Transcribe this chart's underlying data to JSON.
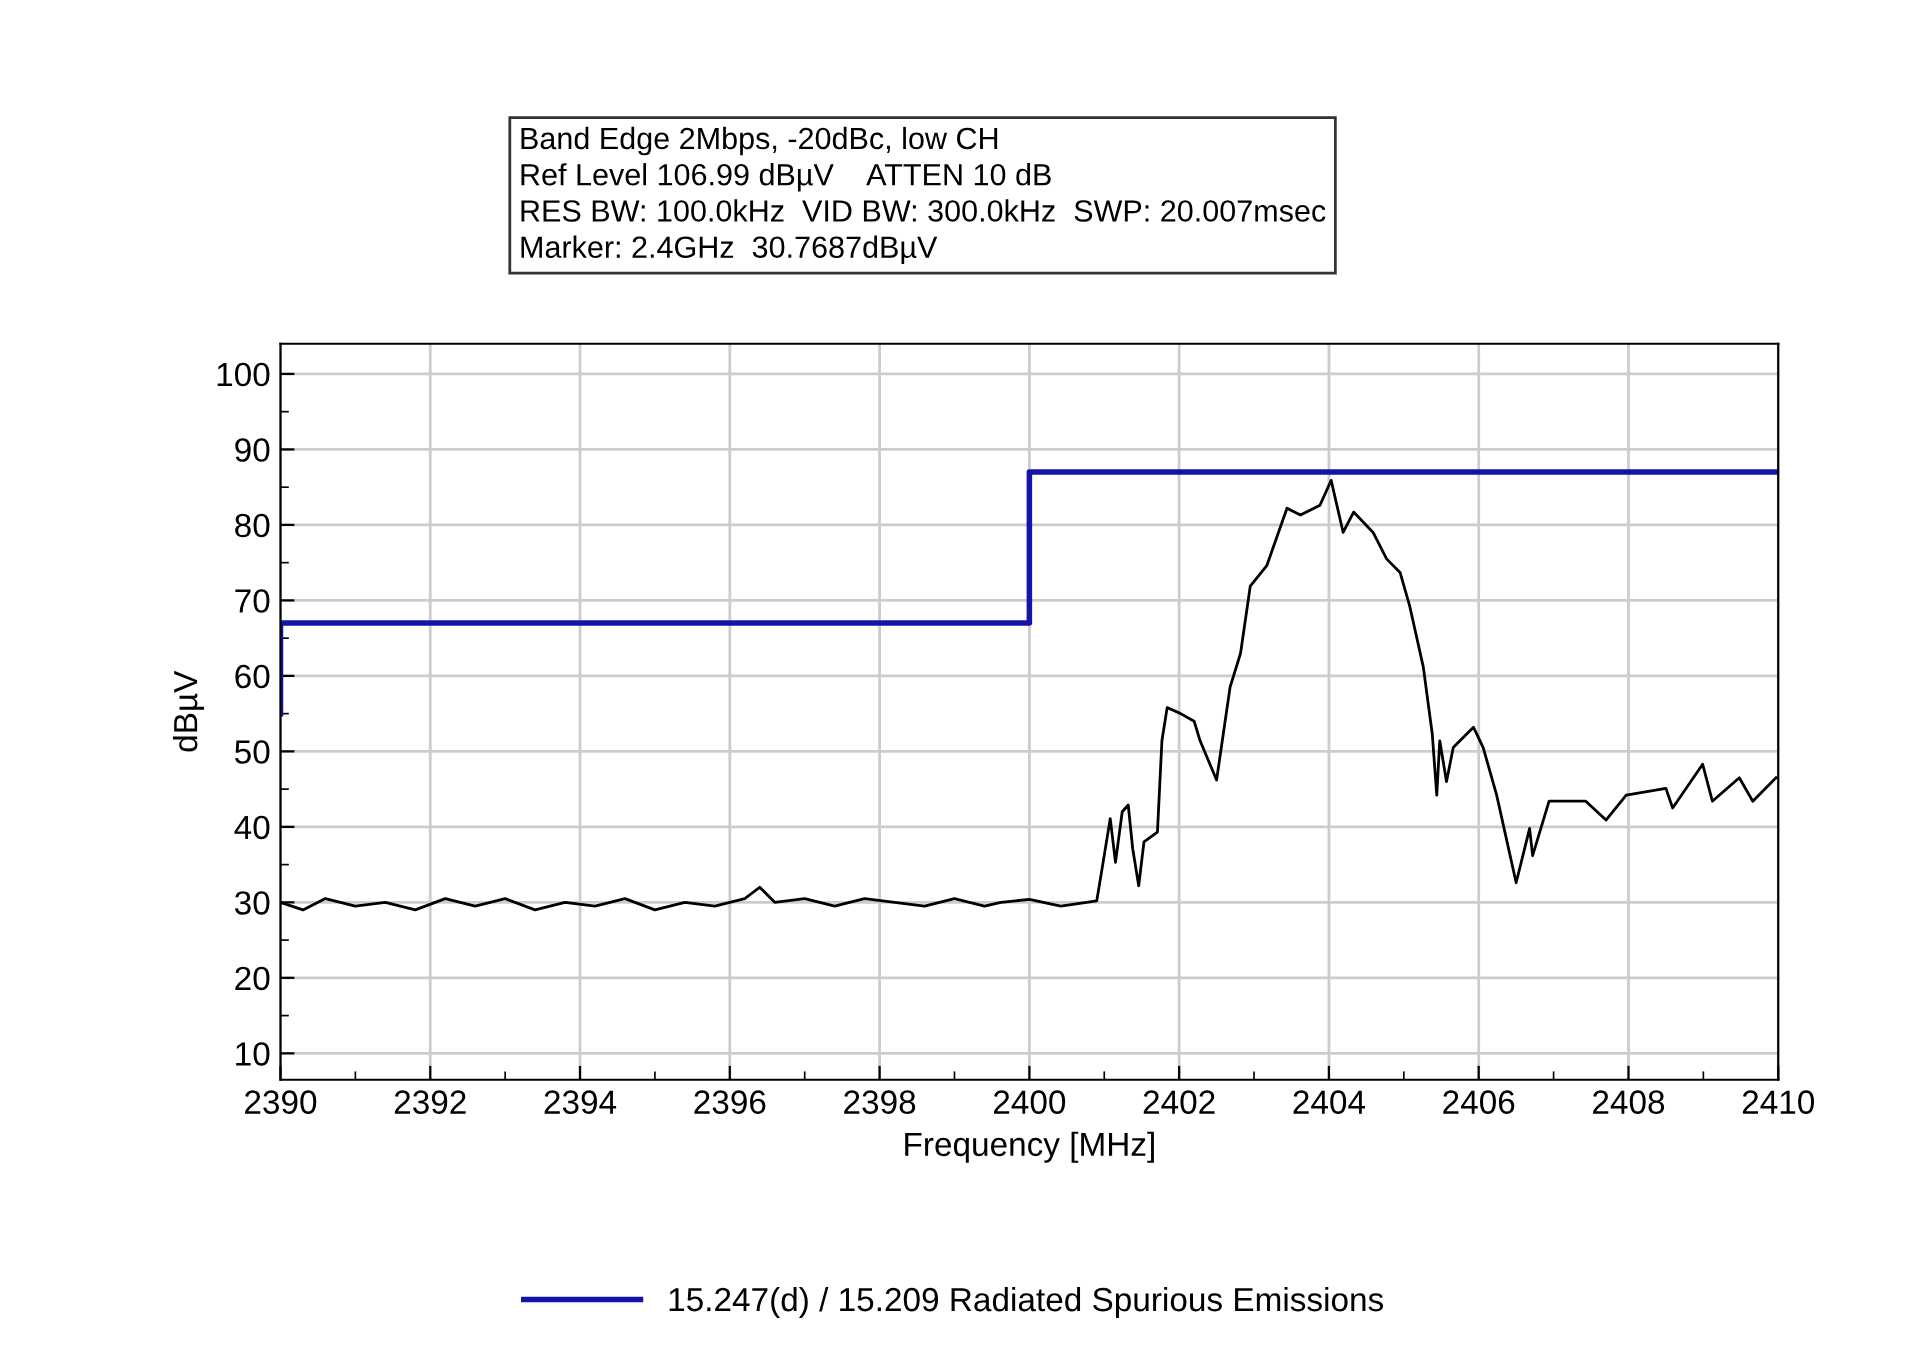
{
  "chart_data": {
    "type": "line",
    "xlabel": "Frequency [MHz]",
    "ylabel": "dBµV",
    "annotations": [
      "Band Edge 2Mbps, -20dBc, low CH",
      "Ref Level 106.99 dBµV    ATTEN 10 dB",
      "RES BW: 100.0kHz  VID BW: 300.0kHz  SWP: 20.007msec",
      "Marker: 2.4GHz  30.7687dBµV"
    ],
    "xlim": [
      2390,
      2410
    ],
    "xticks": [
      2390,
      2392,
      2394,
      2396,
      2398,
      2400,
      2402,
      2404,
      2406,
      2408,
      2410
    ],
    "ylim": [
      6.5,
      104
    ],
    "yticks": [
      10,
      20,
      30,
      40,
      50,
      60,
      70,
      80,
      90,
      100
    ],
    "grid": true,
    "legend": "bottom",
    "series": [
      {
        "name": "15.247(d) / 15.209 Radiated Spurious Emissions",
        "color": "#1414a8",
        "x": [
          2390,
          2390,
          2400,
          2400,
          2410
        ],
        "values": [
          55,
          67,
          67,
          87,
          87
        ]
      },
      {
        "color": "#000000",
        "x": [
          2390,
          2390.3,
          2390.6,
          2391,
          2391.4,
          2391.8,
          2392.2,
          2392.6,
          2393,
          2393.4,
          2393.8,
          2394.2,
          2394.6,
          2395,
          2395.4,
          2395.8,
          2396.2,
          2396.4,
          2396.6,
          2397,
          2397.4,
          2397.8,
          2398.2,
          2398.6,
          2399,
          2399.4,
          2399.62,
          2400,
          2400.42,
          2400.9,
          2400.97,
          2401.08,
          2401.15,
          2401.24,
          2401.32,
          2401.38,
          2401.46,
          2401.53,
          2401.71,
          2401.77,
          2401.84,
          2402.02,
          2402.2,
          2402.28,
          2402.5,
          2402.68,
          2402.82,
          2402.95,
          2403.17,
          2403.44,
          2403.62,
          2403.88,
          2404.03,
          2404.19,
          2404.33,
          2404.59,
          2404.77,
          2404.95,
          2405.08,
          2405.26,
          2405.38,
          2405.44,
          2405.48,
          2405.57,
          2405.66,
          2405.93,
          2406.06,
          2406.24,
          2406.5,
          2406.68,
          2406.72,
          2406.94,
          2407.43,
          2407.7,
          2407.97,
          2408.5,
          2408.59,
          2408.99,
          2409.12,
          2409.48,
          2409.66,
          2409.97
        ],
        "values": [
          30,
          29,
          30.5,
          29.5,
          30,
          29,
          30.5,
          29.5,
          30.5,
          29,
          30,
          29.5,
          30.5,
          29,
          30,
          29.5,
          30.5,
          32,
          30,
          30.5,
          29.5,
          30.5,
          30,
          29.5,
          30.5,
          29.5,
          30,
          30.4,
          29.5,
          30.2,
          34.4,
          41.1,
          35.3,
          42,
          42.9,
          37.1,
          32.2,
          38,
          39.3,
          51.4,
          55.8,
          55,
          54,
          51.4,
          46.2,
          58.5,
          63,
          71.9,
          74.6,
          82.2,
          81.3,
          82.6,
          85.9,
          79,
          81.7,
          79,
          75.5,
          73.7,
          69.2,
          61.2,
          52.3,
          44.2,
          51.4,
          46,
          50.5,
          53.2,
          50.5,
          44.2,
          32.6,
          39.8,
          36.2,
          43.4,
          43.4,
          40.9,
          44.2,
          45.1,
          42.5,
          48.3,
          43.4,
          46.5,
          43.4,
          46.5
        ]
      }
    ]
  }
}
